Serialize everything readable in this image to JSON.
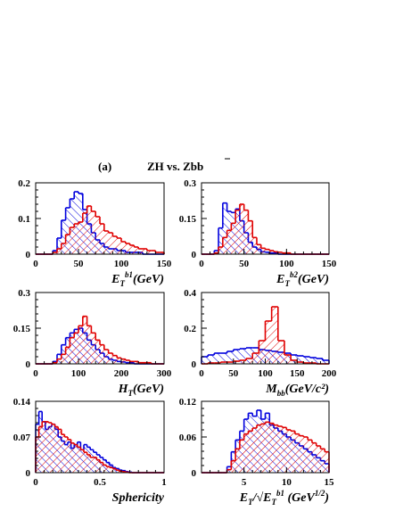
{
  "figure": {
    "label": "(a)",
    "title_main": "ZH  vs.  Zb",
    "title_bbar": "b"
  },
  "chart_data": [
    {
      "type": "histogram",
      "id": "et_b1",
      "xlabel": {
        "main": "E",
        "sub": "T",
        "sup": "b1",
        "tail": "(GeV)"
      },
      "xlim": [
        0,
        150
      ],
      "ylim": [
        0,
        0.2
      ],
      "x_ticks": [
        "0",
        "50",
        "100",
        "150"
      ],
      "y_ticks": [
        {
          "v": 0,
          "t": "0"
        },
        {
          "v": 0.1,
          "t": "0.1"
        },
        {
          "v": 0.2,
          "t": "0.2"
        }
      ],
      "bin_start": 0,
      "bin_width": 5,
      "series": [
        {
          "color": "#e00000",
          "hatch": "red",
          "values": [
            0,
            0,
            0,
            0,
            0.005,
            0.015,
            0.03,
            0.055,
            0.075,
            0.085,
            0.09,
            0.115,
            0.135,
            0.12,
            0.105,
            0.085,
            0.065,
            0.06,
            0.05,
            0.045,
            0.035,
            0.03,
            0.025,
            0.02,
            0.015,
            0.015,
            0.01,
            0.01,
            0.005,
            0.005
          ]
        },
        {
          "color": "#0000dd",
          "hatch": "blue",
          "values": [
            0,
            0,
            0,
            0,
            0.01,
            0.045,
            0.095,
            0.13,
            0.155,
            0.175,
            0.17,
            0.125,
            0.085,
            0.06,
            0.04,
            0.03,
            0.02,
            0.015,
            0.015,
            0.01,
            0.01,
            0.005,
            0.005,
            0.005,
            0.005,
            0,
            0,
            0,
            0,
            0
          ]
        }
      ]
    },
    {
      "type": "histogram",
      "id": "et_b2",
      "xlabel": {
        "main": "E",
        "sub": "T",
        "sup": "b2",
        "tail": "(GeV)"
      },
      "xlim": [
        0,
        150
      ],
      "ylim": [
        0,
        0.3
      ],
      "x_ticks": [
        "0",
        "50",
        "100",
        "150"
      ],
      "y_ticks": [
        {
          "v": 0,
          "t": "0"
        },
        {
          "v": 0.15,
          "t": "0.15"
        },
        {
          "v": 0.3,
          "t": "0.3"
        }
      ],
      "bin_start": 0,
      "bin_width": 5,
      "series": [
        {
          "color": "#e00000",
          "hatch": "red",
          "values": [
            0,
            0,
            0,
            0.005,
            0.03,
            0.07,
            0.1,
            0.13,
            0.185,
            0.21,
            0.185,
            0.14,
            0.07,
            0.04,
            0.025,
            0.02,
            0.015,
            0.01,
            0.008,
            0.005,
            0.005,
            0,
            0,
            0,
            0,
            0,
            0,
            0,
            0,
            0
          ]
        },
        {
          "color": "#0000dd",
          "hatch": "blue",
          "values": [
            0,
            0,
            0,
            0.015,
            0.11,
            0.215,
            0.18,
            0.175,
            0.19,
            0.14,
            0.09,
            0.05,
            0.03,
            0.02,
            0.01,
            0.008,
            0.005,
            0.005,
            0,
            0,
            0,
            0,
            0,
            0,
            0,
            0,
            0,
            0,
            0,
            0
          ]
        }
      ]
    },
    {
      "type": "histogram",
      "id": "ht",
      "xlabel": {
        "main": "H",
        "sub": "T",
        "sup": "",
        "tail": "(GeV)"
      },
      "xlim": [
        0,
        300
      ],
      "ylim": [
        0,
        0.3
      ],
      "x_ticks": [
        "0",
        "100",
        "200",
        "300"
      ],
      "y_ticks": [
        {
          "v": 0,
          "t": "0"
        },
        {
          "v": 0.15,
          "t": "0.15"
        },
        {
          "v": 0.3,
          "t": "0.3"
        }
      ],
      "bin_start": 0,
      "bin_width": 10,
      "series": [
        {
          "color": "#e00000",
          "hatch": "red",
          "values": [
            0,
            0,
            0,
            0,
            0.005,
            0.02,
            0.04,
            0.07,
            0.11,
            0.13,
            0.16,
            0.2,
            0.16,
            0.13,
            0.1,
            0.08,
            0.06,
            0.045,
            0.035,
            0.025,
            0.02,
            0.015,
            0.01,
            0.01,
            0.005,
            0.005,
            0.005,
            0,
            0,
            0
          ]
        },
        {
          "color": "#0000dd",
          "hatch": "blue",
          "values": [
            0,
            0,
            0,
            0,
            0.01,
            0.04,
            0.08,
            0.11,
            0.13,
            0.145,
            0.15,
            0.13,
            0.1,
            0.08,
            0.06,
            0.045,
            0.03,
            0.02,
            0.015,
            0.01,
            0.008,
            0.005,
            0.005,
            0,
            0,
            0,
            0,
            0,
            0,
            0
          ]
        }
      ]
    },
    {
      "type": "histogram",
      "id": "mbb",
      "xlabel": {
        "main": "M",
        "sub": "bb",
        "sup": "",
        "tail": "(GeV/c²)"
      },
      "xlim": [
        0,
        200
      ],
      "ylim": [
        0,
        0.4
      ],
      "x_ticks": [
        "0",
        "50",
        "100",
        "150",
        "200"
      ],
      "y_ticks": [
        {
          "v": 0,
          "t": "0"
        },
        {
          "v": 0.2,
          "t": "0.2"
        },
        {
          "v": 0.4,
          "t": "0.4"
        }
      ],
      "bin_start": 0,
      "bin_width": 10,
      "series": [
        {
          "color": "#e00000",
          "hatch": "red",
          "values": [
            0,
            0.005,
            0.005,
            0.01,
            0.01,
            0.015,
            0.02,
            0.03,
            0.06,
            0.13,
            0.24,
            0.32,
            0.13,
            0.05,
            0.02,
            0.01,
            0.005,
            0.005,
            0,
            0
          ]
        },
        {
          "color": "#0000dd",
          "hatch": "blue",
          "values": [
            0.04,
            0.05,
            0.06,
            0.06,
            0.07,
            0.08,
            0.085,
            0.09,
            0.09,
            0.08,
            0.075,
            0.07,
            0.065,
            0.06,
            0.05,
            0.045,
            0.04,
            0.035,
            0.03,
            0.02
          ]
        }
      ]
    },
    {
      "type": "histogram",
      "id": "sphericity",
      "xlabel": {
        "main": "Sphericity",
        "sub": "",
        "sup": "",
        "tail": ""
      },
      "xlim": [
        0,
        1
      ],
      "ylim": [
        0,
        0.14
      ],
      "x_ticks": [
        "0",
        "0.5",
        "1"
      ],
      "y_ticks": [
        {
          "v": 0,
          "t": "0"
        },
        {
          "v": 0.07,
          "t": "0.07"
        },
        {
          "v": 0.14,
          "t": "0.14"
        }
      ],
      "bin_start": 0,
      "bin_width": 0.025,
      "series": [
        {
          "color": "#e00000",
          "hatch": "red",
          "values": [
            0.07,
            0.09,
            0.1,
            0.1,
            0.098,
            0.095,
            0.09,
            0.085,
            0.075,
            0.07,
            0.065,
            0.058,
            0.055,
            0.05,
            0.045,
            0.04,
            0.035,
            0.03,
            0.03,
            0.025,
            0.02,
            0.015,
            0.012,
            0.01,
            0.008,
            0.005,
            0.003,
            0.002,
            0.001,
            0,
            0,
            0,
            0,
            0,
            0,
            0,
            0,
            0,
            0,
            0
          ]
        },
        {
          "color": "#0000dd",
          "hatch": "blue",
          "values": [
            0.095,
            0.12,
            0.1,
            0.085,
            0.09,
            0.095,
            0.085,
            0.07,
            0.062,
            0.055,
            0.06,
            0.048,
            0.055,
            0.06,
            0.045,
            0.055,
            0.05,
            0.045,
            0.04,
            0.035,
            0.03,
            0.025,
            0.02,
            0.015,
            0.01,
            0.008,
            0.005,
            0.004,
            0.002,
            0.001,
            0,
            0,
            0,
            0,
            0,
            0,
            0,
            0,
            0,
            0
          ]
        }
      ]
    },
    {
      "type": "histogram",
      "id": "met_sig",
      "xlabel": {
        "main": "E",
        "sub": "T",
        "sup": "",
        "tail": "/√E",
        "sub2": "T",
        "sup2": "b1",
        "tail2": " (GeV",
        "sup3": "1/2",
        "tail3": ")"
      },
      "xlim": [
        0,
        15
      ],
      "ylim": [
        0,
        0.12
      ],
      "x_ticks": [
        "5",
        "10",
        "15"
      ],
      "x_tick_values": [
        5,
        10,
        15
      ],
      "y_ticks": [
        {
          "v": 0,
          "t": "0"
        },
        {
          "v": 0.06,
          "t": "0.06"
        },
        {
          "v": 0.12,
          "t": "0.12"
        }
      ],
      "bin_start": 0,
      "bin_width": 0.5,
      "series": [
        {
          "color": "#e00000",
          "hatch": "red",
          "values": [
            0,
            0,
            0,
            0,
            0,
            0,
            0.005,
            0.02,
            0.04,
            0.055,
            0.065,
            0.07,
            0.075,
            0.08,
            0.082,
            0.085,
            0.083,
            0.08,
            0.078,
            0.076,
            0.072,
            0.07,
            0.065,
            0.062,
            0.06,
            0.055,
            0.05,
            0.045,
            0.04,
            0.035
          ]
        },
        {
          "color": "#0000dd",
          "hatch": "blue",
          "values": [
            0,
            0,
            0,
            0,
            0,
            0,
            0.01,
            0.035,
            0.055,
            0.07,
            0.09,
            0.1,
            0.095,
            0.105,
            0.09,
            0.1,
            0.08,
            0.075,
            0.07,
            0.065,
            0.06,
            0.055,
            0.05,
            0.045,
            0.04,
            0.035,
            0.03,
            0.025,
            0.02,
            0.015
          ]
        }
      ]
    }
  ]
}
